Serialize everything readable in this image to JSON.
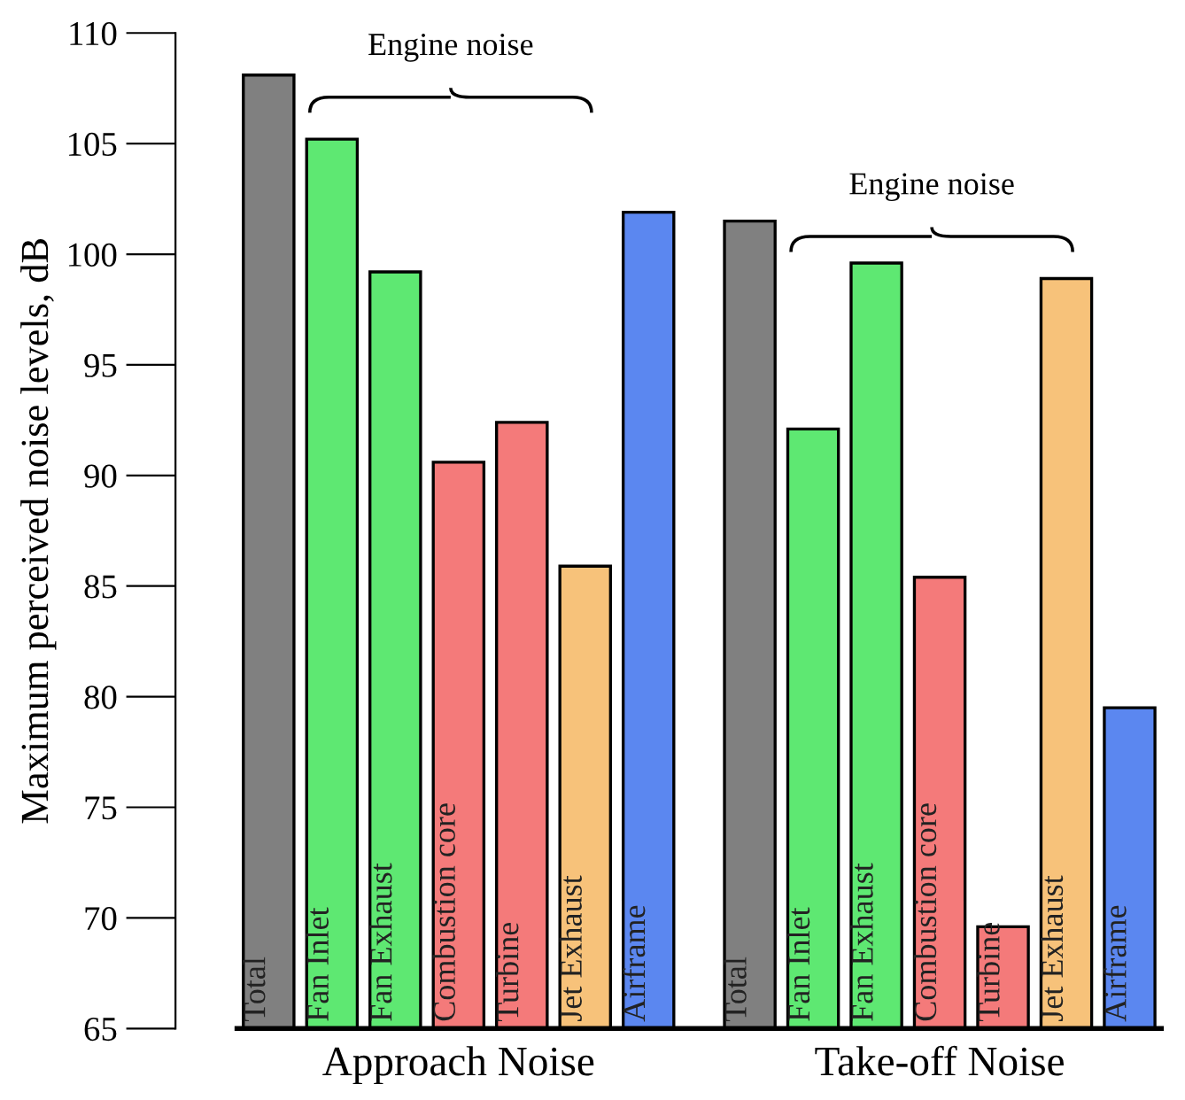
{
  "chart_data": {
    "type": "bar",
    "ylabel": "Maximum perceived noise levels, dB",
    "categories": [
      "Total",
      "Fan Inlet",
      "Fan Exhaust",
      "Combustion core",
      "Turbine",
      "Jet Exhaust",
      "Airframe",
      "Total",
      "Fan Inlet",
      "Fan Exhaust",
      "Combustion core",
      "Turbine",
      "Jet Exhaust",
      "Airframe"
    ],
    "values": [
      108.1,
      105.2,
      99.2,
      90.6,
      92.4,
      85.9,
      101.9,
      101.5,
      92.1,
      99.6,
      85.4,
      69.6,
      98.9,
      79.5
    ],
    "colors": [
      "#808080",
      "#5ee872",
      "#5ee872",
      "#f47a7a",
      "#f47a7a",
      "#f7c27a",
      "#5b87f0",
      "#808080",
      "#5ee872",
      "#5ee872",
      "#f47a7a",
      "#f47a7a",
      "#f7c27a",
      "#5b87f0"
    ],
    "ylim": [
      65,
      110
    ],
    "yticks": [
      65,
      70,
      75,
      80,
      85,
      90,
      95,
      100,
      105,
      110
    ],
    "grid": false,
    "legend": false,
    "annotations": [
      "Approach Noise",
      "Take-off Noise",
      "Engine noise",
      "Engine noise"
    ]
  }
}
